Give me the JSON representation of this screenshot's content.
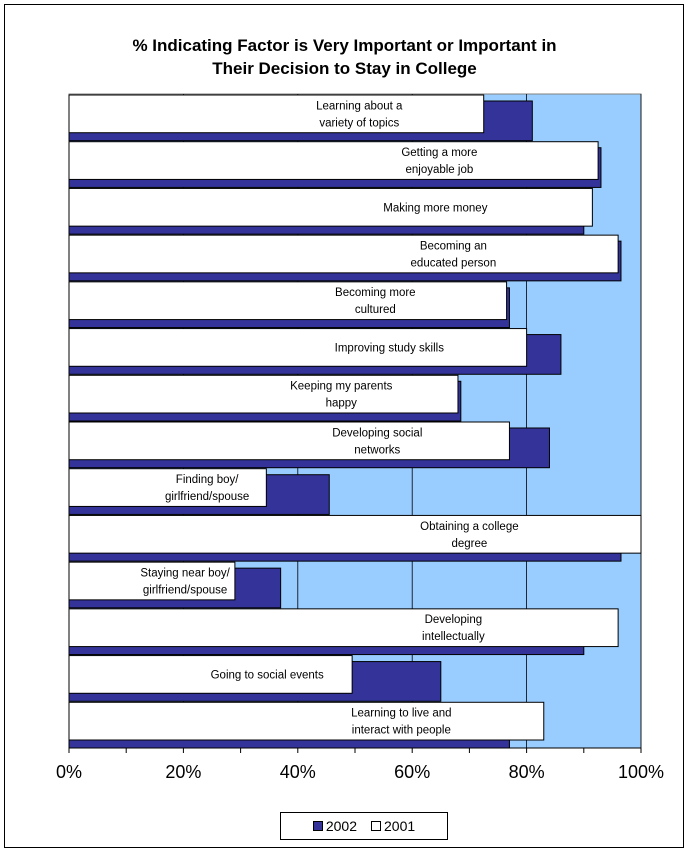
{
  "chart_data": {
    "type": "bar",
    "orientation": "horizontal",
    "title_lines": [
      "% Indicating Factor is Very Important or Important in",
      "Their Decision to Stay in College"
    ],
    "categories": [
      [
        "Learning about a",
        "variety of topics"
      ],
      [
        "Getting a more",
        "enjoyable job"
      ],
      [
        "Making more money"
      ],
      [
        "Becoming an",
        "educated person"
      ],
      [
        "Becoming more",
        "cultured"
      ],
      [
        "Improving study skills"
      ],
      [
        "Keeping my parents",
        "happy"
      ],
      [
        "Developing social",
        "networks"
      ],
      [
        "Finding boy/",
        "girlfriend/spouse"
      ],
      [
        "Obtaining a  college",
        "degree"
      ],
      [
        "Staying near boy/",
        "girlfriend/spouse"
      ],
      [
        "Developing",
        "intellectually"
      ],
      [
        "Going to social events"
      ],
      [
        "Learning to live and",
        "interact with people"
      ]
    ],
    "series": [
      {
        "name": "2002",
        "color": "#333399",
        "values": [
          81,
          93,
          90,
          96.5,
          77,
          86,
          68.5,
          84,
          45.5,
          96.5,
          37,
          90,
          65,
          77
        ]
      },
      {
        "name": "2001",
        "color": "#ffffff",
        "values": [
          72.5,
          92.5,
          91.5,
          96,
          76.5,
          80,
          68,
          77,
          34.5,
          100,
          29,
          96,
          49.5,
          83
        ]
      }
    ],
    "xlim": [
      0,
      100
    ],
    "x_ticks": [
      "0%",
      "20%",
      "40%",
      "60%",
      "80%",
      "100%"
    ],
    "plot_background": "#99ccff",
    "gridlines": "vertical",
    "legend_position": "bottom"
  }
}
